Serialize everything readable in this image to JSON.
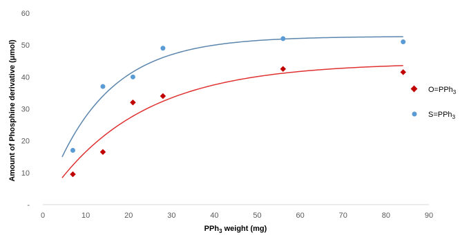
{
  "chart_data": {
    "type": "scatter",
    "title": "",
    "xlabel": {
      "main": "PPh",
      "sub": "3",
      "rest": " weight (mg)"
    },
    "ylabel": "Amount of Phosphine derivative (μmol)",
    "xlim": [
      0,
      90
    ],
    "ylim": [
      0,
      60
    ],
    "x_ticks": [
      "0",
      "10",
      "20",
      "30",
      "40",
      "50",
      "60",
      "70",
      "80",
      "90"
    ],
    "y_ticks": [
      "-",
      "10",
      "20",
      "30",
      "40",
      "50",
      "60"
    ],
    "grid": false,
    "legend_position": "right",
    "series": [
      {
        "name": {
          "main": "O=PPh",
          "sub": "3"
        },
        "marker": "diamond",
        "color": "#C00000",
        "x": [
          7,
          14,
          21,
          28,
          56,
          84
        ],
        "y": [
          9.5,
          16.5,
          32,
          34,
          42.5,
          41.5
        ],
        "trend_color": "#E03030"
      },
      {
        "name": {
          "main": "S=PPh",
          "sub": "3"
        },
        "marker": "circle",
        "color": "#5B9BD5",
        "x": [
          7,
          14,
          21,
          28,
          56,
          84
        ],
        "y": [
          17,
          37,
          40,
          49,
          52,
          51
        ],
        "trend_color": "#5A85AC"
      }
    ]
  }
}
